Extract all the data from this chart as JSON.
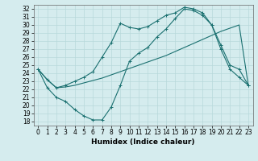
{
  "xlabel": "Humidex (Indice chaleur)",
  "bg_color": "#d5ecee",
  "grid_color": "#b8d8da",
  "line_color": "#1a7070",
  "xlim": [
    -0.5,
    23.5
  ],
  "ylim": [
    17.5,
    32.5
  ],
  "xticks": [
    0,
    1,
    2,
    3,
    4,
    5,
    6,
    7,
    8,
    9,
    10,
    11,
    12,
    13,
    14,
    15,
    16,
    17,
    18,
    19,
    20,
    21,
    22,
    23
  ],
  "yticks": [
    18,
    19,
    20,
    21,
    22,
    23,
    24,
    25,
    26,
    27,
    28,
    29,
    30,
    31,
    32
  ],
  "line1_x": [
    0,
    1,
    2,
    3,
    4,
    5,
    6,
    7,
    8,
    9,
    10,
    11,
    12,
    13,
    14,
    15,
    16,
    17,
    18,
    19,
    20,
    21,
    22,
    23
  ],
  "line1_y": [
    24.5,
    23.2,
    22.2,
    22.3,
    22.5,
    22.8,
    23.1,
    23.4,
    23.8,
    24.2,
    24.6,
    25.0,
    25.4,
    25.8,
    26.2,
    26.7,
    27.2,
    27.7,
    28.2,
    28.7,
    29.2,
    29.6,
    30.0,
    22.5
  ],
  "line2_x": [
    0,
    1,
    2,
    3,
    4,
    5,
    6,
    7,
    8,
    9,
    10,
    11,
    12,
    13,
    14,
    15,
    16,
    17,
    18,
    19,
    20,
    21,
    22,
    23
  ],
  "line2_y": [
    24.5,
    23.2,
    22.2,
    22.5,
    23.0,
    23.5,
    24.2,
    26.0,
    27.8,
    30.2,
    29.7,
    29.5,
    29.8,
    30.5,
    31.2,
    31.5,
    32.2,
    32.0,
    31.5,
    30.0,
    27.5,
    25.0,
    24.5,
    22.5
  ],
  "line3_x": [
    0,
    1,
    2,
    3,
    4,
    5,
    6,
    7,
    8,
    9,
    10,
    11,
    12,
    13,
    14,
    15,
    16,
    17,
    18,
    19,
    20,
    21,
    22,
    23
  ],
  "line3_y": [
    24.5,
    22.2,
    21.0,
    20.5,
    19.5,
    18.7,
    18.2,
    18.2,
    19.8,
    22.5,
    25.5,
    26.5,
    27.2,
    28.5,
    29.5,
    30.8,
    32.0,
    31.8,
    31.2,
    30.0,
    27.0,
    24.5,
    23.5,
    22.5
  ],
  "tick_fontsize": 5.5,
  "xlabel_fontsize": 6.5
}
